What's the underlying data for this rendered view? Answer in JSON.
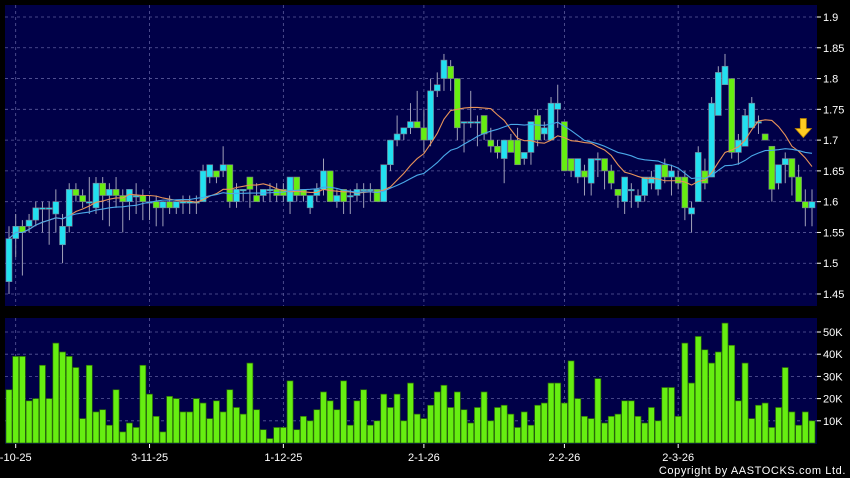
{
  "chart_data": [
    {
      "type": "candlestick",
      "panel": "price",
      "ylim": [
        1.45,
        1.9
      ],
      "yticks": [
        "1.9",
        "1.85",
        "1.8",
        "1.75",
        "1.7",
        "1.65",
        "1.6",
        "1.55",
        "1.5",
        "1.45"
      ],
      "grid": true,
      "up_color": "#22e0f0",
      "down_color": "#66ee11",
      "ma_colors": [
        "#e8935a",
        "#4aa8e8"
      ],
      "moving_average_periods": [
        10,
        20
      ],
      "marker": {
        "type": "down-arrow",
        "color": "#ffcc22"
      },
      "ohlc": [
        [
          1.47,
          1.56,
          1.45,
          1.54
        ],
        [
          1.54,
          1.58,
          1.51,
          1.56
        ],
        [
          1.56,
          1.57,
          1.48,
          1.55
        ],
        [
          1.56,
          1.58,
          1.55,
          1.57
        ],
        [
          1.57,
          1.6,
          1.56,
          1.59
        ],
        [
          1.59,
          1.6,
          1.55,
          1.59
        ],
        [
          1.59,
          1.6,
          1.53,
          1.59
        ],
        [
          1.58,
          1.62,
          1.55,
          1.6
        ],
        [
          1.53,
          1.58,
          1.5,
          1.56
        ],
        [
          1.56,
          1.63,
          1.55,
          1.62
        ],
        [
          1.62,
          1.63,
          1.6,
          1.61
        ],
        [
          1.61,
          1.62,
          1.59,
          1.6
        ],
        [
          1.6,
          1.64,
          1.58,
          1.6
        ],
        [
          1.59,
          1.64,
          1.58,
          1.63
        ],
        [
          1.63,
          1.64,
          1.57,
          1.61
        ],
        [
          1.61,
          1.63,
          1.56,
          1.62
        ],
        [
          1.62,
          1.64,
          1.59,
          1.61
        ],
        [
          1.61,
          1.62,
          1.55,
          1.6
        ],
        [
          1.6,
          1.62,
          1.57,
          1.62
        ],
        [
          1.61,
          1.63,
          1.58,
          1.61
        ],
        [
          1.61,
          1.62,
          1.57,
          1.6
        ],
        [
          1.6,
          1.61,
          1.57,
          1.6
        ],
        [
          1.6,
          1.61,
          1.56,
          1.59
        ],
        [
          1.59,
          1.6,
          1.56,
          1.6
        ],
        [
          1.6,
          1.61,
          1.58,
          1.59
        ],
        [
          1.59,
          1.6,
          1.58,
          1.6
        ],
        [
          1.6,
          1.61,
          1.58,
          1.6
        ],
        [
          1.6,
          1.61,
          1.58,
          1.6
        ],
        [
          1.6,
          1.61,
          1.58,
          1.6
        ],
        [
          1.6,
          1.66,
          1.6,
          1.65
        ],
        [
          1.64,
          1.66,
          1.63,
          1.66
        ],
        [
          1.65,
          1.65,
          1.63,
          1.64
        ],
        [
          1.65,
          1.69,
          1.64,
          1.66
        ],
        [
          1.66,
          1.66,
          1.59,
          1.6
        ],
        [
          1.6,
          1.63,
          1.59,
          1.62
        ],
        [
          1.62,
          1.62,
          1.6,
          1.62
        ],
        [
          1.64,
          1.64,
          1.59,
          1.62
        ],
        [
          1.61,
          1.63,
          1.6,
          1.6
        ],
        [
          1.61,
          1.62,
          1.6,
          1.62
        ],
        [
          1.62,
          1.63,
          1.6,
          1.62
        ],
        [
          1.62,
          1.63,
          1.6,
          1.61
        ],
        [
          1.62,
          1.63,
          1.6,
          1.61
        ],
        [
          1.6,
          1.64,
          1.58,
          1.64
        ],
        [
          1.64,
          1.64,
          1.6,
          1.61
        ],
        [
          1.62,
          1.62,
          1.6,
          1.61
        ],
        [
          1.59,
          1.61,
          1.58,
          1.61
        ],
        [
          1.61,
          1.63,
          1.6,
          1.62
        ],
        [
          1.62,
          1.67,
          1.61,
          1.65
        ],
        [
          1.65,
          1.65,
          1.6,
          1.6
        ],
        [
          1.6,
          1.62,
          1.59,
          1.61
        ],
        [
          1.62,
          1.62,
          1.58,
          1.6
        ],
        [
          1.61,
          1.62,
          1.58,
          1.61
        ],
        [
          1.61,
          1.63,
          1.6,
          1.62
        ],
        [
          1.62,
          1.63,
          1.59,
          1.62
        ],
        [
          1.62,
          1.63,
          1.6,
          1.62
        ],
        [
          1.62,
          1.62,
          1.6,
          1.6
        ],
        [
          1.6,
          1.66,
          1.6,
          1.66
        ],
        [
          1.66,
          1.7,
          1.65,
          1.7
        ],
        [
          1.7,
          1.74,
          1.69,
          1.71
        ],
        [
          1.71,
          1.72,
          1.7,
          1.72
        ],
        [
          1.72,
          1.76,
          1.71,
          1.73
        ],
        [
          1.73,
          1.78,
          1.72,
          1.72
        ],
        [
          1.72,
          1.75,
          1.68,
          1.7
        ],
        [
          1.7,
          1.8,
          1.69,
          1.78
        ],
        [
          1.78,
          1.81,
          1.77,
          1.79
        ],
        [
          1.8,
          1.84,
          1.78,
          1.83
        ],
        [
          1.82,
          1.83,
          1.78,
          1.8
        ],
        [
          1.8,
          1.8,
          1.7,
          1.72
        ],
        [
          1.73,
          1.73,
          1.68,
          1.73
        ],
        [
          1.73,
          1.78,
          1.72,
          1.73
        ],
        [
          1.73,
          1.74,
          1.69,
          1.73
        ],
        [
          1.74,
          1.74,
          1.7,
          1.71
        ],
        [
          1.7,
          1.72,
          1.68,
          1.69
        ],
        [
          1.69,
          1.7,
          1.67,
          1.68
        ],
        [
          1.67,
          1.7,
          1.63,
          1.7
        ],
        [
          1.7,
          1.71,
          1.68,
          1.68
        ],
        [
          1.7,
          1.72,
          1.66,
          1.66
        ],
        [
          1.67,
          1.68,
          1.66,
          1.68
        ],
        [
          1.68,
          1.73,
          1.66,
          1.73
        ],
        [
          1.74,
          1.75,
          1.69,
          1.7
        ],
        [
          1.71,
          1.73,
          1.7,
          1.72
        ],
        [
          1.7,
          1.77,
          1.7,
          1.76
        ],
        [
          1.75,
          1.79,
          1.72,
          1.76
        ],
        [
          1.73,
          1.73,
          1.65,
          1.65
        ],
        [
          1.67,
          1.67,
          1.64,
          1.65
        ],
        [
          1.64,
          1.67,
          1.63,
          1.67
        ],
        [
          1.65,
          1.66,
          1.61,
          1.64
        ],
        [
          1.63,
          1.67,
          1.61,
          1.67
        ],
        [
          1.67,
          1.68,
          1.64,
          1.67
        ],
        [
          1.67,
          1.67,
          1.62,
          1.65
        ],
        [
          1.65,
          1.66,
          1.62,
          1.63
        ],
        [
          1.62,
          1.62,
          1.59,
          1.61
        ],
        [
          1.6,
          1.64,
          1.58,
          1.64
        ],
        [
          1.62,
          1.63,
          1.59,
          1.62
        ],
        [
          1.6,
          1.62,
          1.59,
          1.61
        ],
        [
          1.61,
          1.64,
          1.6,
          1.64
        ],
        [
          1.63,
          1.65,
          1.62,
          1.64
        ],
        [
          1.62,
          1.66,
          1.61,
          1.66
        ],
        [
          1.66,
          1.67,
          1.63,
          1.64
        ],
        [
          1.64,
          1.66,
          1.61,
          1.65
        ],
        [
          1.64,
          1.65,
          1.62,
          1.63
        ],
        [
          1.64,
          1.65,
          1.57,
          1.59
        ],
        [
          1.58,
          1.6,
          1.55,
          1.59
        ],
        [
          1.6,
          1.69,
          1.6,
          1.68
        ],
        [
          1.65,
          1.67,
          1.62,
          1.63
        ],
        [
          1.64,
          1.77,
          1.64,
          1.76
        ],
        [
          1.74,
          1.82,
          1.74,
          1.81
        ],
        [
          1.79,
          1.84,
          1.79,
          1.82
        ],
        [
          1.8,
          1.8,
          1.67,
          1.68
        ],
        [
          1.68,
          1.71,
          1.66,
          1.7
        ],
        [
          1.69,
          1.75,
          1.69,
          1.74
        ],
        [
          1.72,
          1.77,
          1.72,
          1.76
        ],
        [
          1.73,
          1.74,
          1.71,
          1.73
        ],
        [
          1.71,
          1.71,
          1.7,
          1.7
        ],
        [
          1.69,
          1.69,
          1.6,
          1.62
        ],
        [
          1.63,
          1.66,
          1.62,
          1.66
        ],
        [
          1.66,
          1.68,
          1.63,
          1.67
        ],
        [
          1.67,
          1.67,
          1.61,
          1.64
        ],
        [
          1.64,
          1.66,
          1.6,
          1.6
        ],
        [
          1.6,
          1.62,
          1.56,
          1.59
        ],
        [
          1.59,
          1.62,
          1.56,
          1.6
        ]
      ]
    },
    {
      "type": "bar",
      "panel": "volume",
      "ylim": [
        0,
        56000
      ],
      "yticks": [
        "50K",
        "40K",
        "30K",
        "20K",
        "10K"
      ],
      "bar_color": "#66ee11",
      "grid": true,
      "values": [
        24000,
        39000,
        39000,
        19000,
        20000,
        35000,
        20000,
        45000,
        41000,
        39000,
        34000,
        11000,
        35000,
        14000,
        15000,
        8000,
        24000,
        5000,
        9000,
        7000,
        35000,
        22000,
        12000,
        5000,
        21000,
        20000,
        14000,
        14000,
        20000,
        18000,
        11000,
        19000,
        14000,
        24000,
        16000,
        13000,
        36000,
        15000,
        6000,
        2000,
        7000,
        7000,
        28000,
        6000,
        12000,
        10000,
        15000,
        23000,
        19000,
        15000,
        28000,
        8000,
        19000,
        24000,
        8000,
        10000,
        22000,
        16000,
        22000,
        10000,
        27000,
        13000,
        11000,
        17000,
        23000,
        26000,
        16000,
        23000,
        15000,
        9000,
        16000,
        23000,
        10000,
        16000,
        17000,
        13000,
        7000,
        14000,
        8000,
        17000,
        18000,
        27000,
        27000,
        18000,
        37000,
        20000,
        12000,
        11000,
        29000,
        9000,
        12000,
        13000,
        19000,
        19000,
        12000,
        9000,
        16000,
        10000,
        25000,
        25000,
        12000,
        45000,
        27000,
        48000,
        42000,
        36000,
        41000,
        54000,
        44000,
        19000,
        36000,
        11000,
        17000,
        18000,
        7000,
        16000,
        34000,
        14000,
        8000,
        14000,
        10000
      ]
    }
  ],
  "xaxis": {
    "ticks": [
      {
        "label": "-10-25",
        "index": 1
      },
      {
        "label": "3-11-25",
        "index": 21
      },
      {
        "label": "1-12-25",
        "index": 41
      },
      {
        "label": "2-1-26",
        "index": 62
      },
      {
        "label": "2-2-26",
        "index": 83
      },
      {
        "label": "2-3-26",
        "index": 100
      }
    ]
  },
  "copyright": "Copyright by AASTOCKS.com Ltd.",
  "colors": {
    "panel_bg": "#000048",
    "grid": "#5a5a9a",
    "page_bg": "#000000"
  }
}
